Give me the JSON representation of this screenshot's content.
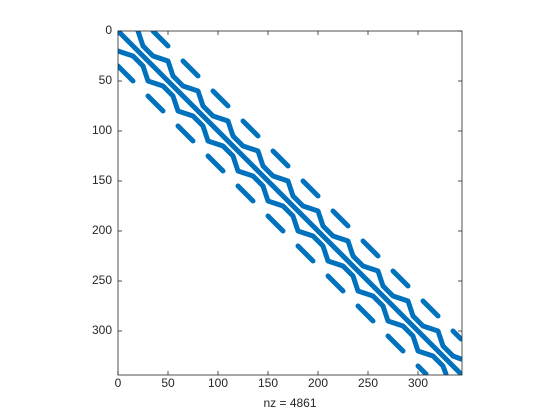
{
  "chart_data": {
    "type": "spy",
    "xlabel": "nz = 4861",
    "xlim": [
      0,
      344
    ],
    "ylim": [
      0,
      344
    ],
    "y_reversed": true,
    "xticks": [
      0,
      50,
      100,
      150,
      200,
      250,
      300
    ],
    "yticks": [
      0,
      50,
      100,
      150,
      200,
      250,
      300
    ],
    "color": "#0072BD",
    "lines": [
      [
        [
          1,
          1
        ],
        [
          343,
          343
        ]
      ],
      [
        [
          20,
          0
        ],
        [
          25,
          15
        ],
        [
          35,
          25
        ],
        [
          50,
          30
        ],
        [
          55,
          45
        ],
        [
          65,
          55
        ],
        [
          80,
          60
        ],
        [
          85,
          75
        ],
        [
          95,
          85
        ],
        [
          110,
          90
        ],
        [
          115,
          105
        ],
        [
          125,
          115
        ],
        [
          140,
          120
        ],
        [
          145,
          135
        ],
        [
          155,
          145
        ],
        [
          170,
          150
        ],
        [
          175,
          165
        ],
        [
          185,
          175
        ],
        [
          200,
          180
        ],
        [
          205,
          195
        ],
        [
          215,
          205
        ],
        [
          230,
          210
        ],
        [
          235,
          225
        ],
        [
          245,
          235
        ],
        [
          260,
          240
        ],
        [
          265,
          255
        ],
        [
          275,
          265
        ],
        [
          290,
          270
        ],
        [
          295,
          285
        ],
        [
          305,
          295
        ],
        [
          320,
          300
        ],
        [
          325,
          315
        ],
        [
          335,
          325
        ],
        [
          343,
          328
        ]
      ],
      [
        [
          0,
          20
        ],
        [
          15,
          25
        ],
        [
          25,
          35
        ],
        [
          30,
          50
        ],
        [
          45,
          55
        ],
        [
          55,
          65
        ],
        [
          60,
          80
        ],
        [
          75,
          85
        ],
        [
          85,
          95
        ],
        [
          90,
          110
        ],
        [
          105,
          115
        ],
        [
          115,
          125
        ],
        [
          120,
          140
        ],
        [
          135,
          145
        ],
        [
          145,
          155
        ],
        [
          150,
          170
        ],
        [
          165,
          175
        ],
        [
          175,
          185
        ],
        [
          180,
          200
        ],
        [
          195,
          205
        ],
        [
          205,
          215
        ],
        [
          210,
          230
        ],
        [
          225,
          235
        ],
        [
          235,
          245
        ],
        [
          240,
          260
        ],
        [
          255,
          265
        ],
        [
          265,
          275
        ],
        [
          270,
          290
        ],
        [
          285,
          295
        ],
        [
          295,
          305
        ],
        [
          300,
          320
        ],
        [
          315,
          325
        ],
        [
          325,
          335
        ],
        [
          328,
          343
        ]
      ]
    ],
    "dashes": [
      [
        35,
        0,
        50,
        15
      ],
      [
        65,
        30,
        80,
        45
      ],
      [
        95,
        60,
        110,
        75
      ],
      [
        125,
        90,
        140,
        105
      ],
      [
        155,
        120,
        170,
        135
      ],
      [
        185,
        150,
        200,
        165
      ],
      [
        215,
        180,
        230,
        195
      ],
      [
        245,
        210,
        260,
        225
      ],
      [
        275,
        240,
        290,
        255
      ],
      [
        305,
        270,
        320,
        285
      ],
      [
        335,
        300,
        343,
        308
      ],
      [
        0,
        35,
        15,
        50
      ],
      [
        30,
        65,
        45,
        80
      ],
      [
        60,
        95,
        75,
        110
      ],
      [
        90,
        125,
        105,
        140
      ],
      [
        120,
        155,
        135,
        170
      ],
      [
        150,
        185,
        165,
        200
      ],
      [
        180,
        215,
        195,
        230
      ],
      [
        210,
        245,
        225,
        260
      ],
      [
        240,
        275,
        255,
        290
      ],
      [
        270,
        305,
        285,
        320
      ],
      [
        300,
        335,
        308,
        343
      ]
    ]
  }
}
